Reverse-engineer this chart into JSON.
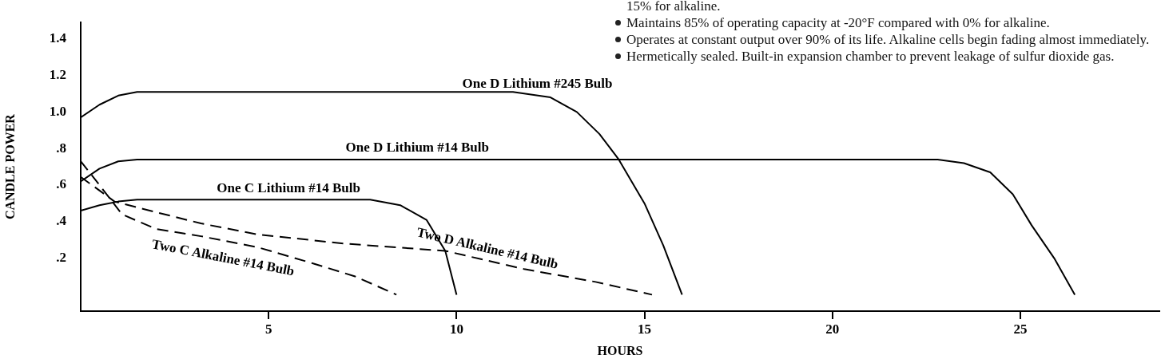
{
  "chart_data": {
    "type": "line",
    "xlabel": "HOURS",
    "ylabel": "CANDLE POWER",
    "xlim": [
      0,
      28.7
    ],
    "xticks": [
      5,
      10,
      15,
      20,
      25
    ],
    "ylim": [
      -0.09,
      1.49
    ],
    "yticks": [
      {
        "value": 0.2,
        "label": ".2"
      },
      {
        "value": 0.4,
        "label": ".4"
      },
      {
        "value": 0.6,
        "label": ".6"
      },
      {
        "value": 0.8,
        "label": ".8"
      },
      {
        "value": 1.0,
        "label": "1.0"
      },
      1.2,
      1.4
    ],
    "grid": false,
    "legend": false,
    "marker": "none",
    "series": [
      {
        "name": "One D Lithium #245 Bulb",
        "color": "#000000",
        "line_style": "solid",
        "x": [
          0,
          0.5,
          1,
          1.5,
          11.5,
          12.5,
          13.2,
          13.8,
          14.3,
          15,
          15.5,
          16
        ],
        "values": [
          0.97,
          1.04,
          1.09,
          1.11,
          1.11,
          1.08,
          1.0,
          0.88,
          0.745,
          0.5,
          0.27,
          0
        ]
      },
      {
        "name": "One D Lithium #14 Bulb",
        "color": "#000000",
        "line_style": "solid",
        "x": [
          0,
          0.5,
          1,
          1.5,
          22.8,
          23.5,
          24.2,
          24.8,
          25.3,
          25.9,
          26.45
        ],
        "values": [
          0.62,
          0.69,
          0.73,
          0.74,
          0.74,
          0.72,
          0.67,
          0.55,
          0.38,
          0.2,
          0
        ]
      },
      {
        "name": "One C Lithium #14 Bulb",
        "color": "#000000",
        "line_style": "solid",
        "x": [
          0,
          0.5,
          1,
          1.5,
          7.7,
          8.5,
          9.2,
          9.7,
          10
        ],
        "values": [
          0.46,
          0.49,
          0.51,
          0.52,
          0.52,
          0.49,
          0.41,
          0.24,
          0
        ]
      },
      {
        "name": "Two C Alkaline #14 Bulb",
        "color": "#000000",
        "line_style": "dashed",
        "x": [
          0,
          0.5,
          1.1,
          2.0,
          3.2,
          4.7,
          6.2,
          7.3,
          8.4
        ],
        "values": [
          0.73,
          0.6,
          0.44,
          0.36,
          0.32,
          0.26,
          0.17,
          0.1,
          0
        ]
      },
      {
        "name": "Two D Alkaline #14 Bulb",
        "color": "#000000",
        "line_style": "dashed",
        "x": [
          0,
          0.9,
          1.65,
          3.2,
          4.7,
          7.0,
          9.7,
          11.8,
          13.7,
          15.2
        ],
        "values": [
          0.645,
          0.51,
          0.47,
          0.39,
          0.33,
          0.28,
          0.24,
          0.14,
          0.07,
          0
        ]
      }
    ],
    "annotations": [
      "15% for alkaline.",
      "Maintains 85% of operating capacity at -20°F compared with 0% for alkaline.",
      "Operates at constant output over 90% of its life. Alkaline cells begin fading almost immediately.",
      "Hermetically sealed. Built-in expansion chamber to prevent leakage of sulfur dioxide gas."
    ]
  }
}
